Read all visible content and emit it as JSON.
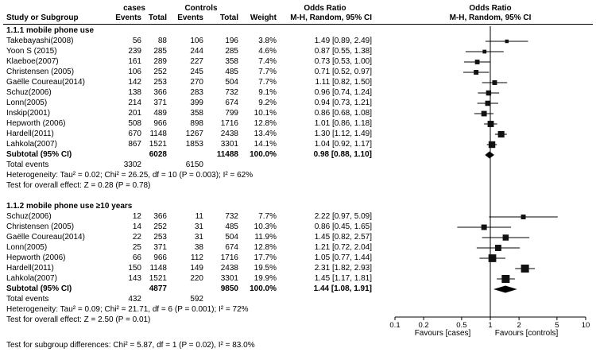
{
  "header": {
    "study_col": "Study or Subgroup",
    "cases_group": "cases",
    "controls_group": "Controls",
    "events_col": "Events",
    "total_col": "Total",
    "weight_col": "Weight",
    "or_title": "Odds Ratio",
    "or_method": "M-H, Random, 95% CI"
  },
  "footer": {
    "subgroup_differences": "Test for subgroup differences: Chi² = 5.87, df = 1 (P = 0.02), I² = 83.0%"
  },
  "chart_data": {
    "type": "forest",
    "scale": "log",
    "xlim": [
      0.1,
      10
    ],
    "axis_ticks": [
      "0.1",
      "0.2",
      "0.5",
      "1",
      "2",
      "5",
      "10"
    ],
    "favours_left": "Favours [cases]",
    "favours_right": "Favours [controls]",
    "subgroups": [
      {
        "label": "1.1.1 mobile phone use",
        "studies": [
          {
            "name": "Takebayashi(2008)",
            "cases_events": 56,
            "cases_total": 88,
            "control_events": 106,
            "control_total": 196,
            "weight": "3.8%",
            "or": 1.49,
            "ci_low": 0.89,
            "ci_high": 2.49,
            "ci_text": "1.49 [0.89, 2.49]"
          },
          {
            "name": "Yoon S (2015)",
            "cases_events": 239,
            "cases_total": 285,
            "control_events": 244,
            "control_total": 285,
            "weight": "4.6%",
            "or": 0.87,
            "ci_low": 0.55,
            "ci_high": 1.38,
            "ci_text": "0.87 [0.55, 1.38]"
          },
          {
            "name": "Klaeboe(2007)",
            "cases_events": 161,
            "cases_total": 289,
            "control_events": 227,
            "control_total": 358,
            "weight": "7.4%",
            "or": 0.73,
            "ci_low": 0.53,
            "ci_high": 1.0,
            "ci_text": "0.73 [0.53, 1.00]"
          },
          {
            "name": "Christensen (2005)",
            "cases_events": 106,
            "cases_total": 252,
            "control_events": 245,
            "control_total": 485,
            "weight": "7.7%",
            "or": 0.71,
            "ci_low": 0.52,
            "ci_high": 0.97,
            "ci_text": "0.71 [0.52, 0.97]"
          },
          {
            "name": "Gaëlle Coureau(2014)",
            "cases_events": 142,
            "cases_total": 253,
            "control_events": 270,
            "control_total": 504,
            "weight": "7.7%",
            "or": 1.11,
            "ci_low": 0.82,
            "ci_high": 1.5,
            "ci_text": "1.11 [0.82, 1.50]"
          },
          {
            "name": "Schuz(2006)",
            "cases_events": 138,
            "cases_total": 366,
            "control_events": 283,
            "control_total": 732,
            "weight": "9.1%",
            "or": 0.96,
            "ci_low": 0.74,
            "ci_high": 1.24,
            "ci_text": "0.96 [0.74, 1.24]"
          },
          {
            "name": "Lonn(2005)",
            "cases_events": 214,
            "cases_total": 371,
            "control_events": 399,
            "control_total": 674,
            "weight": "9.2%",
            "or": 0.94,
            "ci_low": 0.73,
            "ci_high": 1.21,
            "ci_text": "0.94 [0.73, 1.21]"
          },
          {
            "name": "Inskip(2001)",
            "cases_events": 201,
            "cases_total": 489,
            "control_events": 358,
            "control_total": 799,
            "weight": "10.1%",
            "or": 0.86,
            "ci_low": 0.68,
            "ci_high": 1.08,
            "ci_text": "0.86 [0.68, 1.08]"
          },
          {
            "name": "Hepworth (2006)",
            "cases_events": 508,
            "cases_total": 966,
            "control_events": 898,
            "control_total": 1716,
            "weight": "12.8%",
            "or": 1.01,
            "ci_low": 0.86,
            "ci_high": 1.18,
            "ci_text": "1.01 [0.86, 1.18]"
          },
          {
            "name": "Hardell(2011)",
            "cases_events": 670,
            "cases_total": 1148,
            "control_events": 1267,
            "control_total": 2438,
            "weight": "13.4%",
            "or": 1.3,
            "ci_low": 1.12,
            "ci_high": 1.49,
            "ci_text": "1.30 [1.12, 1.49]"
          },
          {
            "name": "Lahkola(2007)",
            "cases_events": 867,
            "cases_total": 1521,
            "control_events": 1853,
            "control_total": 3301,
            "weight": "14.1%",
            "or": 1.04,
            "ci_low": 0.92,
            "ci_high": 1.17,
            "ci_text": "1.04 [0.92, 1.17]"
          }
        ],
        "subtotal": {
          "label": "Subtotal (95% CI)",
          "cases_total": 6028,
          "control_total": 11488,
          "weight": "100.0%",
          "or": 0.98,
          "ci_low": 0.88,
          "ci_high": 1.1,
          "ci_text": "0.98 [0.88, 1.10]"
        },
        "total_events": {
          "label": "Total events",
          "cases": 3302,
          "controls": 6150
        },
        "heterogeneity": "Heterogeneity: Tau² = 0.02; Chi² = 26.25, df = 10 (P = 0.003); I² = 62%",
        "overall_effect": "Test for overall effect: Z = 0.28 (P = 0.78)"
      },
      {
        "label": "1.1.2 mobile phone use ≥10 years",
        "studies": [
          {
            "name": "Schuz(2006)",
            "cases_events": 12,
            "cases_total": 366,
            "control_events": 11,
            "control_total": 732,
            "weight": "7.7%",
            "or": 2.22,
            "ci_low": 0.97,
            "ci_high": 5.09,
            "ci_text": "2.22 [0.97, 5.09]"
          },
          {
            "name": "Christensen (2005)",
            "cases_events": 14,
            "cases_total": 252,
            "control_events": 31,
            "control_total": 485,
            "weight": "10.3%",
            "or": 0.86,
            "ci_low": 0.45,
            "ci_high": 1.65,
            "ci_text": "0.86 [0.45, 1.65]"
          },
          {
            "name": "Gaëlle Coureau(2014)",
            "cases_events": 22,
            "cases_total": 253,
            "control_events": 31,
            "control_total": 504,
            "weight": "11.9%",
            "or": 1.45,
            "ci_low": 0.82,
            "ci_high": 2.57,
            "ci_text": "1.45 [0.82, 2.57]"
          },
          {
            "name": "Lonn(2005)",
            "cases_events": 25,
            "cases_total": 371,
            "control_events": 38,
            "control_total": 674,
            "weight": "12.8%",
            "or": 1.21,
            "ci_low": 0.72,
            "ci_high": 2.04,
            "ci_text": "1.21 [0.72, 2.04]"
          },
          {
            "name": "Hepworth (2006)",
            "cases_events": 66,
            "cases_total": 966,
            "control_events": 112,
            "control_total": 1716,
            "weight": "17.7%",
            "or": 1.05,
            "ci_low": 0.77,
            "ci_high": 1.44,
            "ci_text": "1.05 [0.77, 1.44]"
          },
          {
            "name": "Hardell(2011)",
            "cases_events": 150,
            "cases_total": 1148,
            "control_events": 149,
            "control_total": 2438,
            "weight": "19.5%",
            "or": 2.31,
            "ci_low": 1.82,
            "ci_high": 2.93,
            "ci_text": "2.31 [1.82, 2.93]"
          },
          {
            "name": "Lahkola(2007)",
            "cases_events": 143,
            "cases_total": 1521,
            "control_events": 220,
            "control_total": 3301,
            "weight": "19.9%",
            "or": 1.45,
            "ci_low": 1.17,
            "ci_high": 1.81,
            "ci_text": "1.45 [1.17, 1.81]"
          }
        ],
        "subtotal": {
          "label": "Subtotal (95% CI)",
          "cases_total": 4877,
          "control_total": 9850,
          "weight": "100.0%",
          "or": 1.44,
          "ci_low": 1.08,
          "ci_high": 1.91,
          "ci_text": "1.44 [1.08, 1.91]"
        },
        "total_events": {
          "label": "Total events",
          "cases": 432,
          "controls": 592
        },
        "heterogeneity": "Heterogeneity: Tau² = 0.09; Chi² = 21.71, df = 6 (P = 0.001); I² = 72%",
        "overall_effect": "Test for overall effect: Z = 2.50 (P = 0.01)"
      }
    ]
  }
}
